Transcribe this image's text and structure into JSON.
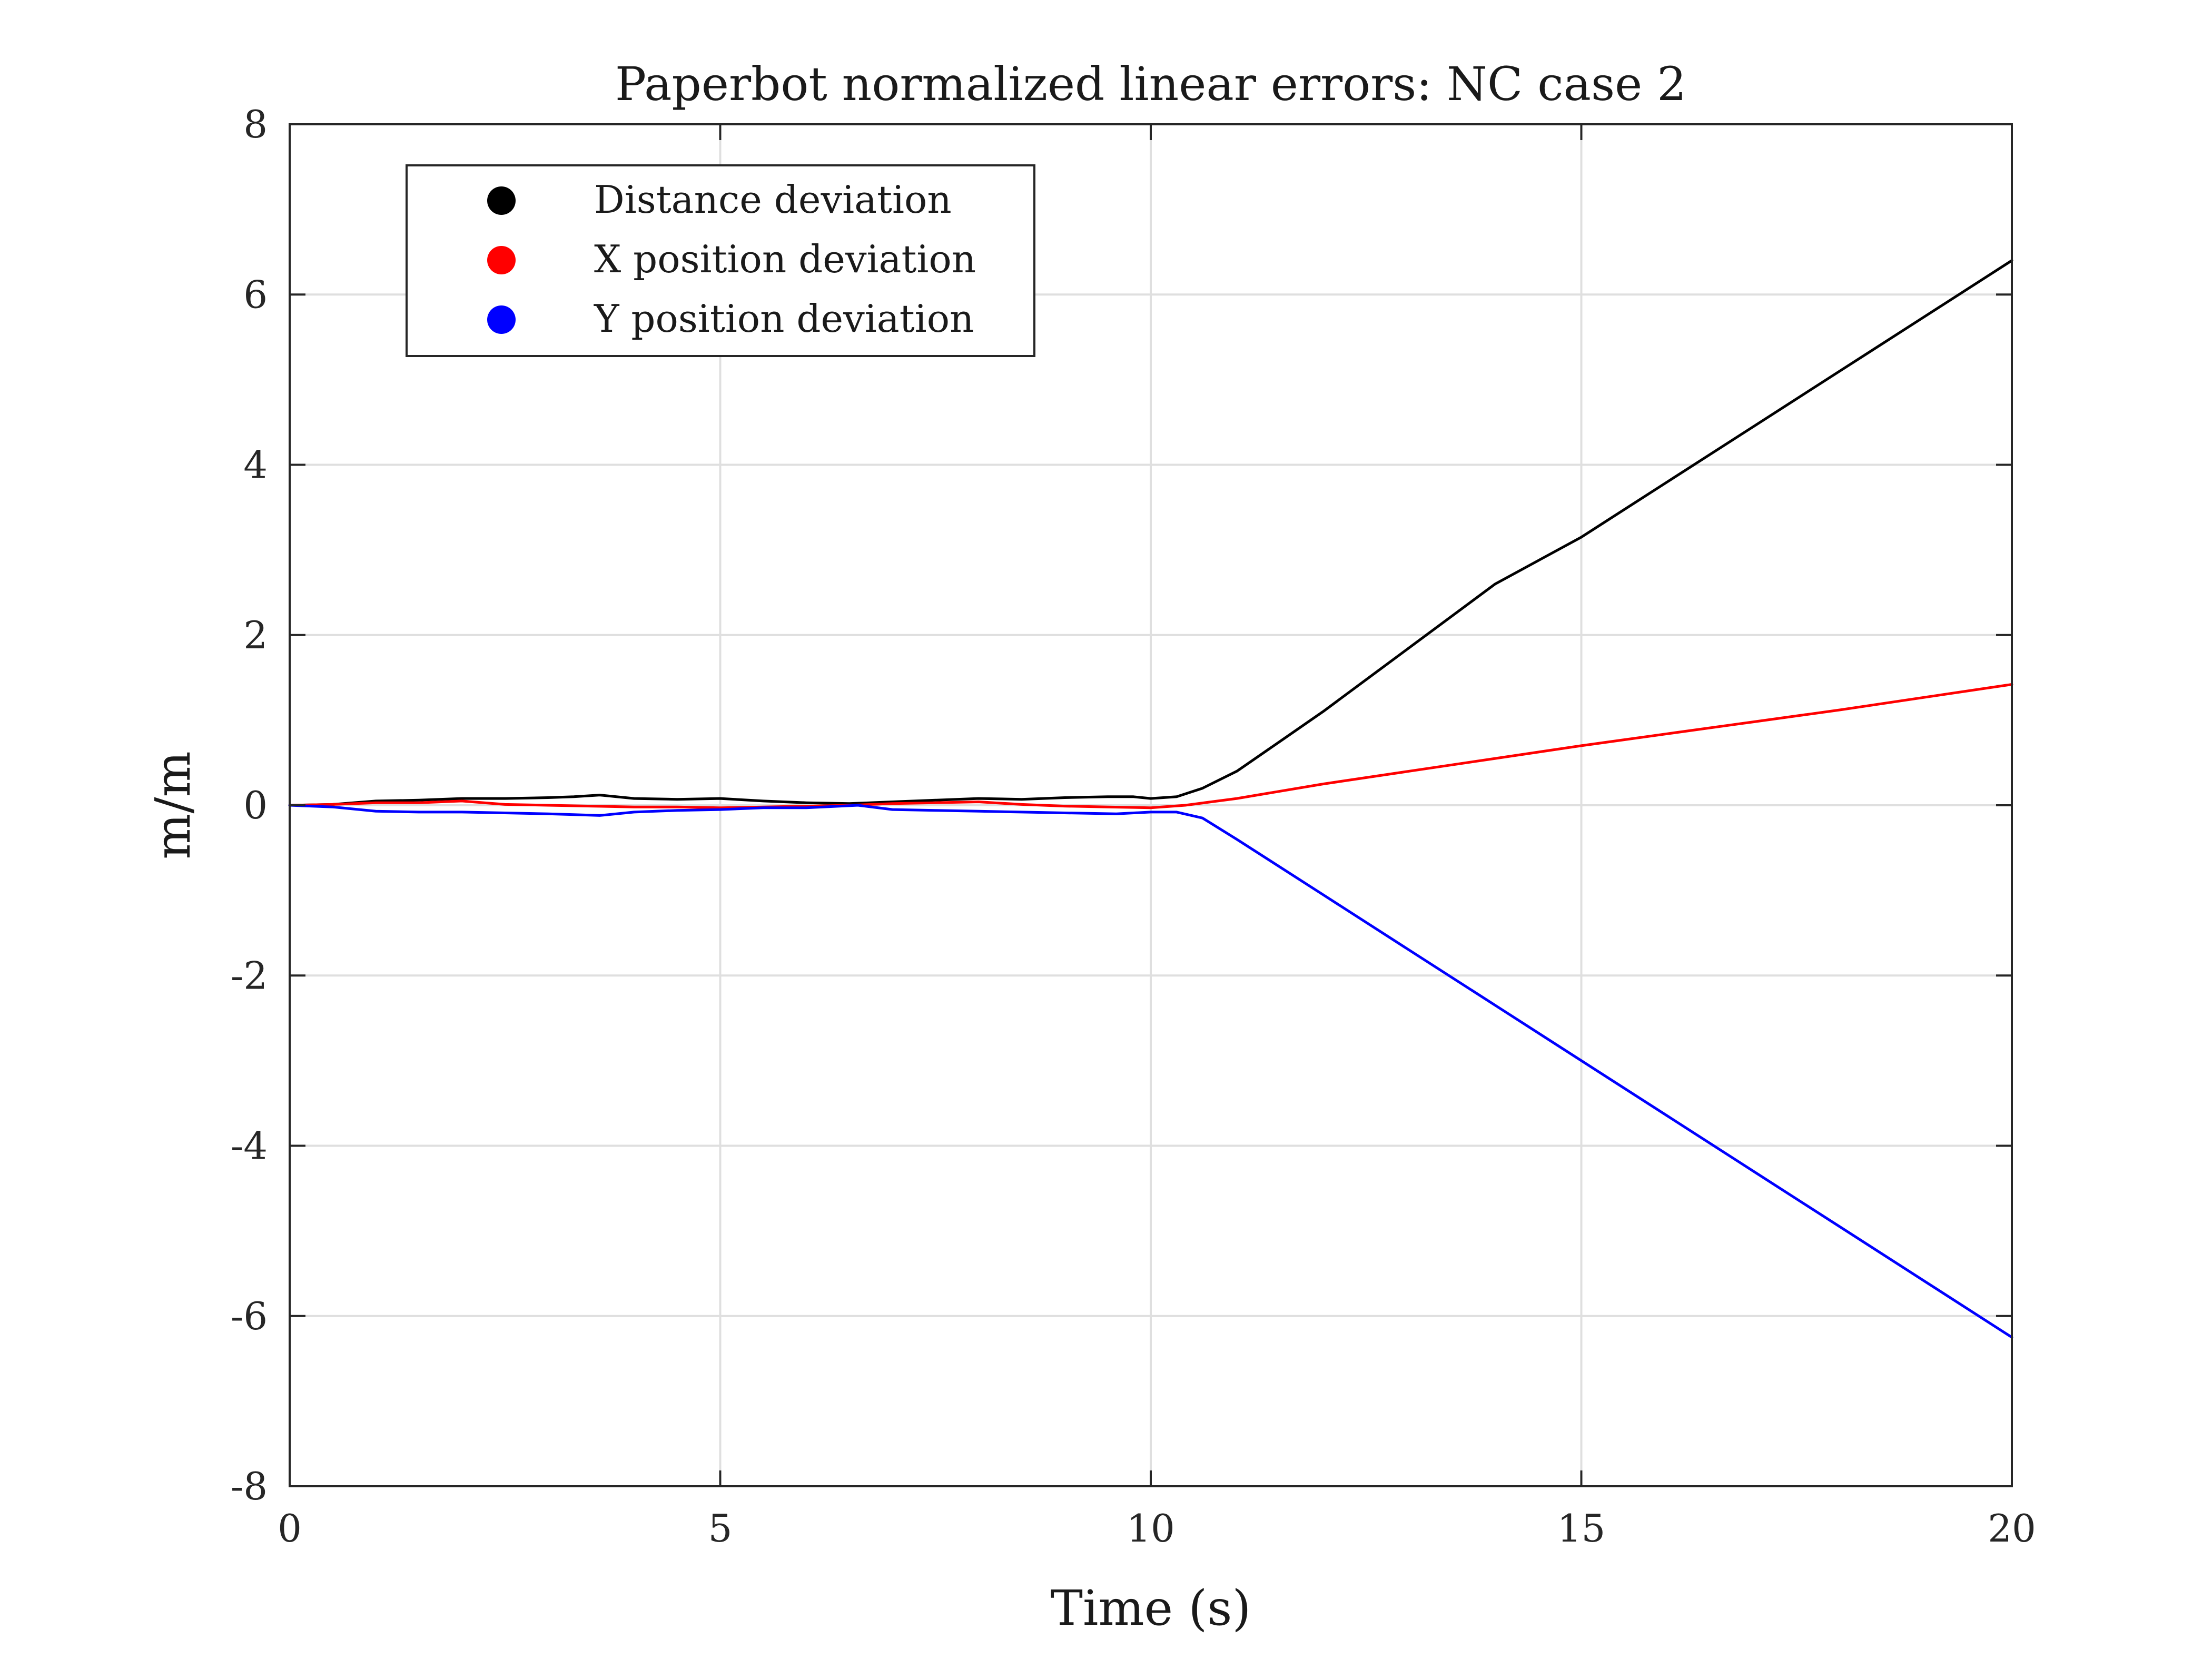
{
  "chart_data": {
    "type": "line",
    "title": "Paperbot normalized linear errors: NC case 2",
    "xlabel": "Time (s)",
    "ylabel": "m/m",
    "xlim": [
      0,
      20
    ],
    "ylim": [
      -8,
      8
    ],
    "xticks": [
      0,
      5,
      10,
      15,
      20
    ],
    "yticks": [
      -8,
      -6,
      -4,
      -2,
      0,
      2,
      4,
      6,
      8
    ],
    "xtick_labels": [
      "0",
      "5",
      "10",
      "15",
      "20"
    ],
    "ytick_labels": [
      "-8",
      "-6",
      "-4",
      "-2",
      "0",
      "2",
      "4",
      "6",
      "8"
    ],
    "grid": true,
    "legend_position": "top-left",
    "series": [
      {
        "name": "Distance deviation",
        "color": "#000000",
        "x": [
          0,
          0.5,
          1,
          1.5,
          2,
          2.5,
          3,
          3.3,
          3.6,
          4,
          4.5,
          5,
          5.5,
          6,
          6.5,
          7,
          7.5,
          8,
          8.5,
          9,
          9.5,
          9.8,
          10,
          10.3,
          10.6,
          11,
          11.5,
          12,
          13,
          14,
          15,
          16,
          17,
          18,
          19,
          20
        ],
        "y": [
          0,
          0.01,
          0.05,
          0.06,
          0.08,
          0.08,
          0.09,
          0.1,
          0.12,
          0.08,
          0.07,
          0.08,
          0.05,
          0.03,
          0.02,
          0.04,
          0.06,
          0.08,
          0.07,
          0.09,
          0.1,
          0.1,
          0.08,
          0.1,
          0.2,
          0.4,
          0.75,
          1.1,
          1.85,
          2.6,
          3.15,
          3.8,
          4.45,
          5.1,
          5.75,
          6.4
        ]
      },
      {
        "name": "X position deviation",
        "color": "#ff0000",
        "x": [
          0,
          0.5,
          1,
          1.5,
          2,
          2.5,
          3,
          3.5,
          4,
          4.5,
          5,
          5.5,
          6,
          6.5,
          7,
          7.5,
          8,
          8.5,
          9,
          9.5,
          10,
          10.4,
          11,
          12,
          13,
          14,
          15,
          16,
          17,
          18,
          19,
          20
        ],
        "y": [
          0,
          0.01,
          0.03,
          0.03,
          0.05,
          0.01,
          0.0,
          -0.01,
          -0.02,
          -0.02,
          -0.03,
          -0.02,
          -0.01,
          0.0,
          0.02,
          0.03,
          0.04,
          0.01,
          -0.01,
          -0.02,
          -0.03,
          0.0,
          0.08,
          0.25,
          0.4,
          0.55,
          0.7,
          0.84,
          0.98,
          1.12,
          1.27,
          1.42
        ]
      },
      {
        "name": "Y position deviation",
        "color": "#0000ff",
        "x": [
          0,
          0.5,
          1,
          1.5,
          2,
          2.5,
          3,
          3.3,
          3.6,
          4,
          4.5,
          5,
          5.5,
          6,
          6.6,
          7,
          7.5,
          8,
          8.5,
          9,
          9.6,
          10,
          10.3,
          10.6,
          11,
          12,
          13,
          14,
          15,
          16,
          17,
          18,
          19,
          20
        ],
        "y": [
          0,
          -0.02,
          -0.07,
          -0.08,
          -0.08,
          -0.09,
          -0.1,
          -0.11,
          -0.12,
          -0.08,
          -0.06,
          -0.05,
          -0.03,
          -0.03,
          0.0,
          -0.05,
          -0.06,
          -0.07,
          -0.08,
          -0.09,
          -0.1,
          -0.08,
          -0.08,
          -0.15,
          -0.4,
          -1.05,
          -1.7,
          -2.35,
          -3.0,
          -3.65,
          -4.3,
          -4.95,
          -5.6,
          -6.25
        ]
      }
    ]
  }
}
